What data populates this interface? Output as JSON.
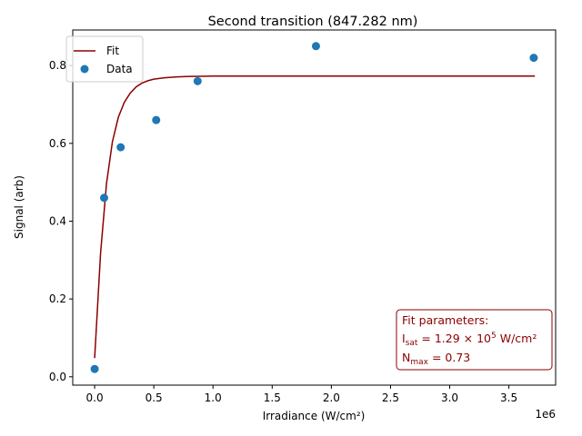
{
  "chart_data": {
    "type": "scatter",
    "title": "Second transition (847.282 nm)",
    "xlabel": "Irradiance (W/cm²)",
    "ylabel": "Signal (arb)",
    "x_offset_label": "1e6",
    "xlim": [
      -0.185,
      3.895
    ],
    "ylim": [
      -0.0215,
      0.8915
    ],
    "x_ticks": [
      0.0,
      0.5,
      1.0,
      1.5,
      2.0,
      2.5,
      3.0,
      3.5
    ],
    "x_tick_labels": [
      "0.0",
      "0.5",
      "1.0",
      "1.5",
      "2.0",
      "2.5",
      "3.0",
      "3.5"
    ],
    "y_ticks": [
      0.0,
      0.2,
      0.4,
      0.6,
      0.8
    ],
    "y_tick_labels": [
      "0.0",
      "0.2",
      "0.4",
      "0.6",
      "0.8"
    ],
    "grid": false,
    "legend_position": "top-left",
    "series": [
      {
        "name": "Fit",
        "kind": "line",
        "color": "#8b0000",
        "x": [
          0.0,
          0.05,
          0.1,
          0.15,
          0.2,
          0.25,
          0.3,
          0.35,
          0.4,
          0.45,
          0.5,
          0.6,
          0.7,
          0.8,
          0.9,
          1.0,
          1.25,
          1.5,
          2.0,
          2.5,
          3.0,
          3.5,
          3.72
        ],
        "y": [
          0.048,
          0.317,
          0.496,
          0.604,
          0.667,
          0.705,
          0.729,
          0.745,
          0.755,
          0.761,
          0.765,
          0.769,
          0.771,
          0.772,
          0.7725,
          0.773,
          0.773,
          0.773,
          0.773,
          0.773,
          0.773,
          0.773,
          0.773
        ]
      },
      {
        "name": "Data",
        "kind": "points",
        "color": "#1f77b4",
        "x": [
          0.0,
          0.08,
          0.22,
          0.52,
          0.87,
          1.87,
          3.71
        ],
        "y": [
          0.02,
          0.46,
          0.59,
          0.66,
          0.76,
          0.85,
          0.82
        ]
      }
    ],
    "annotation": {
      "line1": "Fit parameters:",
      "isat_symbol": "I",
      "isat_sub": "sat",
      "isat_value_prefix": " = 1.29 × 10",
      "isat_exponent": "5",
      "isat_unit": " W/cm²",
      "nmax_symbol": "N",
      "nmax_sub": "max",
      "nmax_value": " = 0.73",
      "color": "#8b0000"
    }
  }
}
